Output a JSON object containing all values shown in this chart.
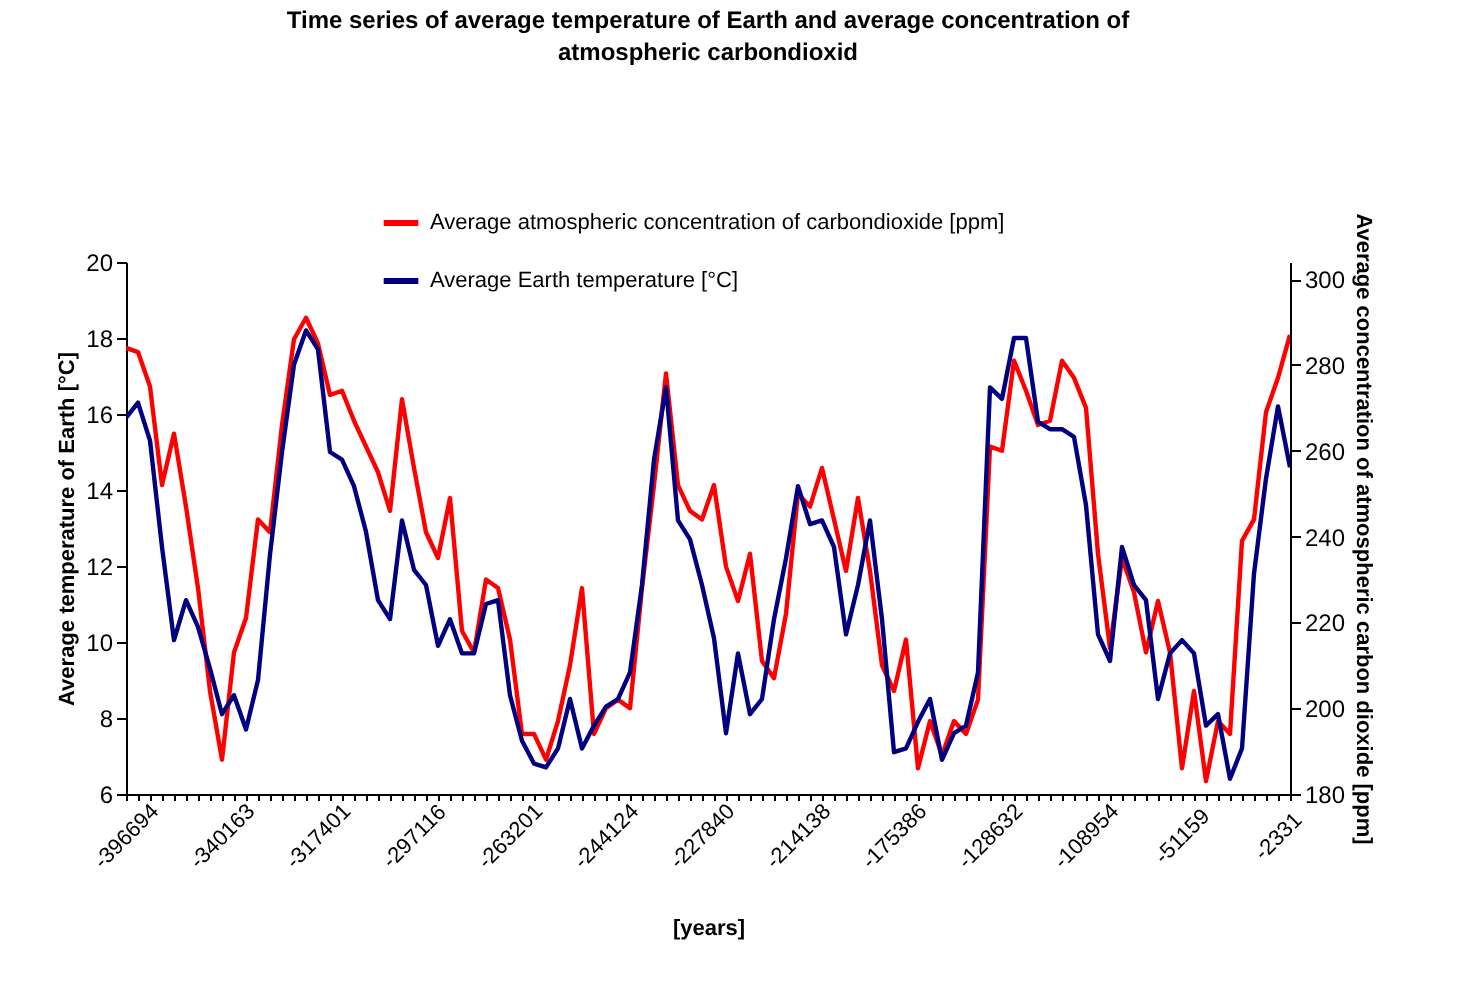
{
  "chart_data": {
    "type": "line",
    "title": "Time series of average temperature of Earth and average concentration of atmospheric carbondioxid",
    "xlabel": "[years]",
    "ylabel": "Average temperature of Earth [°C]",
    "y2label": "Average concentration of atmospheric carbon dioxide [ppm]",
    "categories": [
      "-396694",
      null,
      null,
      null,
      null,
      null,
      null,
      null,
      "-340163",
      null,
      null,
      null,
      null,
      null,
      null,
      null,
      "-317401",
      null,
      null,
      null,
      null,
      null,
      null,
      null,
      "-297116",
      null,
      null,
      null,
      null,
      null,
      null,
      null,
      "-263201",
      null,
      null,
      null,
      null,
      null,
      null,
      null,
      "-244124",
      null,
      null,
      null,
      null,
      null,
      null,
      null,
      "-227840",
      null,
      null,
      null,
      null,
      null,
      null,
      null,
      "-214138",
      null,
      null,
      null,
      null,
      null,
      null,
      null,
      "-175386",
      null,
      null,
      null,
      null,
      null,
      null,
      null,
      "-128632",
      null,
      null,
      null,
      null,
      null,
      null,
      null,
      "-108954",
      null,
      null,
      null,
      null,
      null,
      null,
      null,
      "-51159",
      null,
      null,
      null,
      null,
      null,
      null,
      null,
      "-2331",
      null
    ],
    "series": [
      {
        "name": "Average atmospheric concentration of carbondioxide [ppm]",
        "color": "#ff0000",
        "axis": "y2",
        "values": [
          284,
          283,
          275,
          252,
          264,
          247,
          228,
          204,
          188,
          213,
          221,
          244,
          241,
          266,
          286,
          291,
          285,
          273,
          274,
          267,
          261,
          255,
          246,
          272,
          256,
          241,
          235,
          249,
          218,
          213,
          230,
          228,
          216,
          194,
          194,
          188,
          197,
          210,
          228,
          194,
          200,
          202,
          200,
          228,
          252,
          278,
          252,
          246,
          244,
          252,
          233,
          225,
          236,
          211,
          207,
          222,
          250,
          247,
          256,
          244,
          232,
          249,
          232,
          210,
          204,
          216,
          186,
          197,
          189,
          197,
          194,
          202,
          261,
          260,
          281,
          274,
          266,
          267,
          281,
          277,
          270,
          236,
          214,
          235,
          227,
          213,
          225,
          213,
          186,
          204,
          183,
          197,
          194,
          239,
          244,
          269,
          277,
          287
        ]
      },
      {
        "name": "Average Earth temperature [°C]",
        "color": "#000080",
        "values": [
          15.9,
          16.3,
          15.3,
          12.5,
          10.05,
          11.1,
          10.4,
          9.3,
          8.1,
          8.6,
          7.7,
          9.0,
          12.3,
          15.0,
          17.3,
          18.2,
          17.7,
          15.0,
          14.8,
          14.1,
          12.9,
          11.1,
          10.6,
          13.2,
          11.9,
          11.5,
          9.9,
          10.6,
          9.7,
          9.7,
          11.0,
          11.1,
          8.6,
          7.4,
          6.8,
          6.7,
          7.2,
          8.5,
          7.2,
          7.8,
          8.3,
          8.5,
          9.2,
          11.5,
          14.8,
          16.7,
          13.2,
          12.7,
          11.5,
          10.1,
          7.6,
          9.7,
          8.1,
          8.5,
          10.6,
          12.2,
          14.1,
          13.1,
          13.2,
          12.5,
          10.2,
          11.5,
          13.2,
          10.6,
          7.1,
          7.2,
          7.9,
          8.5,
          6.9,
          7.6,
          7.8,
          9.2,
          16.7,
          16.4,
          18.0,
          18.0,
          15.8,
          15.6,
          15.6,
          15.4,
          13.6,
          10.2,
          9.5,
          12.5,
          11.5,
          11.1,
          8.5,
          9.7,
          10.05,
          9.7,
          7.8,
          8.1,
          6.4,
          7.2,
          11.8,
          14.3,
          16.2,
          14.6
        ]
      }
    ],
    "ylim": [
      6,
      20
    ],
    "yticks": [
      6,
      8,
      10,
      12,
      14,
      16,
      18,
      20
    ],
    "y2lim": [
      180,
      304
    ],
    "y2ticks": [
      180,
      200,
      220,
      240,
      260,
      280,
      300
    ],
    "legend": "top",
    "grid": false
  }
}
